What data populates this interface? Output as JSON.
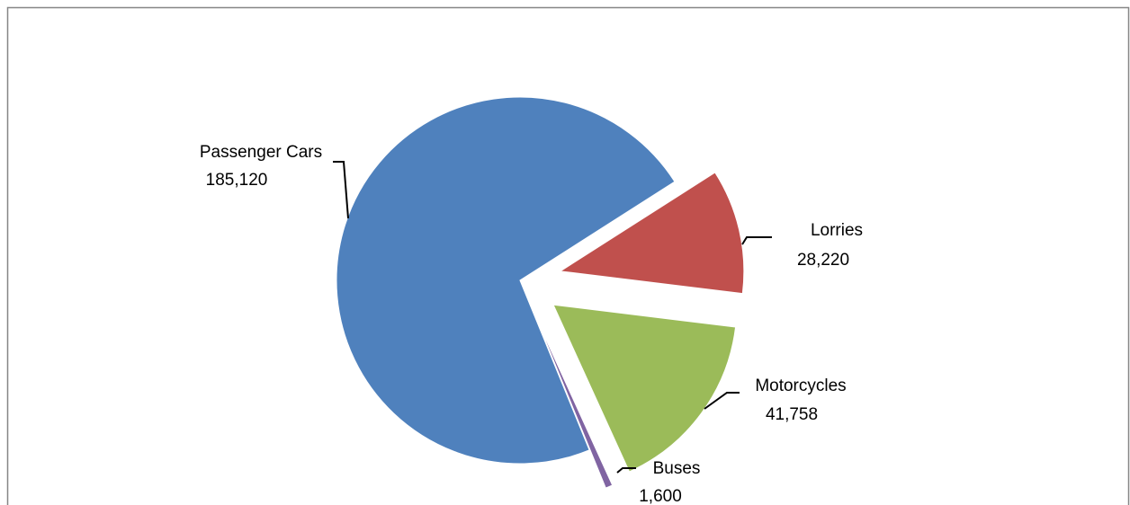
{
  "chart_data": {
    "type": "pie",
    "categories": [
      "Passenger Cars",
      "Lorries",
      "Motorcycles",
      "Buses"
    ],
    "values": [
      185120,
      28220,
      41758,
      1600
    ],
    "value_labels": [
      "185,120",
      "28,220",
      "41,758",
      "1,600"
    ],
    "colors": [
      "#4f81bd",
      "#c0504d",
      "#9bbb59",
      "#8064a2"
    ]
  }
}
